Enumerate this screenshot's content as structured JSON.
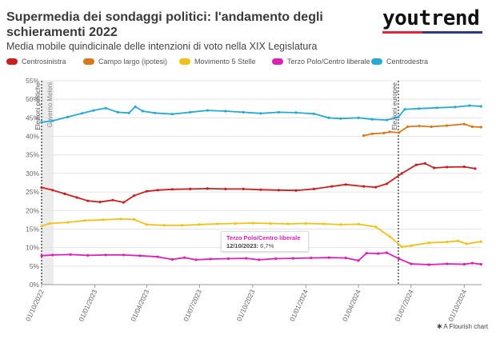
{
  "header": {
    "title": "Supermedia dei sondaggi politici: l'andamento degli schieramenti 2022",
    "subtitle": "Media mobile quindicinale delle intenzioni di voto nella XIX Legislatura",
    "brand": "youtrend"
  },
  "tooltip": {
    "series": "Terzo Polo/Centro liberale",
    "date": "12/10/2023:",
    "value": "6,7%"
  },
  "footer": {
    "credit": "A Flourish chart",
    "credit_icon": "flourish-icon"
  },
  "chart_data": {
    "type": "line",
    "title": "",
    "xlabel": "",
    "ylabel": "",
    "x_range": [
      "2022-10-01",
      "2024-10-31"
    ],
    "ylim": [
      0,
      55
    ],
    "y_ticks": [
      "0%",
      "5%",
      "10%",
      "15%",
      "20%",
      "25%",
      "30%",
      "35%",
      "40%",
      "45%",
      "50%",
      "55%"
    ],
    "x_ticks": [
      {
        "date": "2022-10-01",
        "label": "01/10/2022"
      },
      {
        "date": "2023-01-01",
        "label": "01/01/2023"
      },
      {
        "date": "2023-04-01",
        "label": "01/04/2023"
      },
      {
        "date": "2023-07-01",
        "label": "01/07/2023"
      },
      {
        "date": "2023-10-01",
        "label": "01/10/2023"
      },
      {
        "date": "2024-01-01",
        "label": "01/01/2024"
      },
      {
        "date": "2024-04-01",
        "label": "01/04/2024"
      },
      {
        "date": "2024-07-01",
        "label": "01/07/2024"
      },
      {
        "date": "2024-10-01",
        "label": "01/10/2024"
      }
    ],
    "grid": true,
    "legend_position": "top",
    "events": [
      {
        "date": "2022-10-01",
        "label": "Elezioni politiche",
        "style": "dotted"
      },
      {
        "date": "2022-10-22",
        "label": "Governo Meloni",
        "style": "shaded"
      },
      {
        "date": "2024-06-09",
        "label": "Elezioni europee",
        "style": "dotted"
      }
    ],
    "series": [
      {
        "name": "Centrosinistra",
        "color": "#c8201f",
        "points": [
          [
            "2022-10-01",
            26.2
          ],
          [
            "2022-10-20",
            25.5
          ],
          [
            "2022-11-10",
            24.5
          ],
          [
            "2022-12-01",
            23.5
          ],
          [
            "2022-12-20",
            22.6
          ],
          [
            "2023-01-10",
            22.3
          ],
          [
            "2023-02-01",
            22.8
          ],
          [
            "2023-02-20",
            22.2
          ],
          [
            "2023-03-10",
            24.0
          ],
          [
            "2023-04-01",
            25.2
          ],
          [
            "2023-04-20",
            25.5
          ],
          [
            "2023-05-15",
            25.7
          ],
          [
            "2023-06-15",
            25.8
          ],
          [
            "2023-07-15",
            25.9
          ],
          [
            "2023-08-15",
            25.8
          ],
          [
            "2023-09-15",
            25.8
          ],
          [
            "2023-10-15",
            25.6
          ],
          [
            "2023-11-15",
            25.5
          ],
          [
            "2023-12-15",
            25.4
          ],
          [
            "2024-01-15",
            25.8
          ],
          [
            "2024-02-15",
            26.5
          ],
          [
            "2024-03-10",
            27.0
          ],
          [
            "2024-04-10",
            26.5
          ],
          [
            "2024-05-01",
            26.3
          ],
          [
            "2024-05-20",
            27.2
          ],
          [
            "2024-06-15",
            30.0
          ],
          [
            "2024-07-10",
            32.3
          ],
          [
            "2024-07-25",
            32.7
          ],
          [
            "2024-08-10",
            31.5
          ],
          [
            "2024-09-01",
            31.7
          ],
          [
            "2024-10-01",
            31.8
          ],
          [
            "2024-10-20",
            31.3
          ]
        ]
      },
      {
        "name": "Campo largo (ipotesi)",
        "color": "#d9771b",
        "points": [
          [
            "2024-04-10",
            40.2
          ],
          [
            "2024-04-25",
            40.7
          ],
          [
            "2024-05-15",
            40.9
          ],
          [
            "2024-05-25",
            41.2
          ],
          [
            "2024-06-10",
            41.0
          ],
          [
            "2024-06-25",
            42.6
          ],
          [
            "2024-07-15",
            42.8
          ],
          [
            "2024-08-05",
            42.6
          ],
          [
            "2024-09-01",
            42.9
          ],
          [
            "2024-10-01",
            43.3
          ],
          [
            "2024-10-15",
            42.6
          ],
          [
            "2024-10-30",
            42.5
          ]
        ]
      },
      {
        "name": "Movimento 5 Stelle",
        "color": "#f0c219",
        "points": [
          [
            "2022-10-01",
            15.8
          ],
          [
            "2022-10-15",
            16.5
          ],
          [
            "2022-11-15",
            16.8
          ],
          [
            "2022-12-15",
            17.3
          ],
          [
            "2023-01-15",
            17.5
          ],
          [
            "2023-02-15",
            17.7
          ],
          [
            "2023-03-10",
            17.6
          ],
          [
            "2023-04-01",
            16.2
          ],
          [
            "2023-05-01",
            16.0
          ],
          [
            "2023-06-01",
            16.0
          ],
          [
            "2023-07-01",
            16.2
          ],
          [
            "2023-08-01",
            16.4
          ],
          [
            "2023-09-01",
            16.5
          ],
          [
            "2023-10-01",
            16.6
          ],
          [
            "2023-11-01",
            16.5
          ],
          [
            "2023-12-01",
            16.4
          ],
          [
            "2024-01-01",
            16.5
          ],
          [
            "2024-02-01",
            16.4
          ],
          [
            "2024-03-01",
            16.2
          ],
          [
            "2024-04-01",
            16.3
          ],
          [
            "2024-05-01",
            15.6
          ],
          [
            "2024-05-25",
            13.0
          ],
          [
            "2024-06-15",
            10.2
          ],
          [
            "2024-07-01",
            10.5
          ],
          [
            "2024-08-01",
            11.3
          ],
          [
            "2024-09-01",
            11.5
          ],
          [
            "2024-09-20",
            11.8
          ],
          [
            "2024-10-05",
            11.0
          ],
          [
            "2024-10-30",
            11.6
          ]
        ]
      },
      {
        "name": "Terzo Polo/Centro liberale",
        "color": "#dd1fb6",
        "points": [
          [
            "2022-10-01",
            7.8
          ],
          [
            "2022-10-20",
            8.0
          ],
          [
            "2022-11-20",
            8.1
          ],
          [
            "2022-12-20",
            7.9
          ],
          [
            "2023-01-20",
            8.0
          ],
          [
            "2023-02-20",
            8.0
          ],
          [
            "2023-03-20",
            7.8
          ],
          [
            "2023-04-20",
            7.5
          ],
          [
            "2023-05-15",
            6.8
          ],
          [
            "2023-06-05",
            7.3
          ],
          [
            "2023-06-25",
            6.7
          ],
          [
            "2023-07-20",
            6.9
          ],
          [
            "2023-08-20",
            7.0
          ],
          [
            "2023-09-20",
            7.1
          ],
          [
            "2023-10-12",
            6.7
          ],
          [
            "2023-11-10",
            7.0
          ],
          [
            "2023-12-10",
            7.1
          ],
          [
            "2024-01-10",
            7.2
          ],
          [
            "2024-02-10",
            7.3
          ],
          [
            "2024-03-10",
            7.2
          ],
          [
            "2024-04-01",
            6.5
          ],
          [
            "2024-04-15",
            8.5
          ],
          [
            "2024-05-05",
            8.4
          ],
          [
            "2024-05-20",
            8.6
          ],
          [
            "2024-06-10",
            7.0
          ],
          [
            "2024-07-01",
            5.6
          ],
          [
            "2024-08-01",
            5.4
          ],
          [
            "2024-09-01",
            5.6
          ],
          [
            "2024-10-01",
            5.5
          ],
          [
            "2024-10-15",
            5.8
          ],
          [
            "2024-10-30",
            5.5
          ]
        ]
      },
      {
        "name": "Centrodestra",
        "color": "#28a9d1",
        "points": [
          [
            "2022-10-01",
            43.8
          ],
          [
            "2022-10-20",
            44.2
          ],
          [
            "2022-11-15",
            45.2
          ],
          [
            "2022-12-10",
            46.2
          ],
          [
            "2022-12-30",
            47.0
          ],
          [
            "2023-01-20",
            47.6
          ],
          [
            "2023-02-10",
            46.5
          ],
          [
            "2023-03-01",
            46.3
          ],
          [
            "2023-03-12",
            48.0
          ],
          [
            "2023-03-25",
            46.8
          ],
          [
            "2023-04-15",
            46.3
          ],
          [
            "2023-05-15",
            46.0
          ],
          [
            "2023-06-15",
            46.5
          ],
          [
            "2023-07-15",
            47.0
          ],
          [
            "2023-08-15",
            46.8
          ],
          [
            "2023-09-15",
            46.5
          ],
          [
            "2023-10-15",
            46.2
          ],
          [
            "2023-11-15",
            46.5
          ],
          [
            "2023-12-15",
            46.4
          ],
          [
            "2024-01-15",
            46.1
          ],
          [
            "2024-02-10",
            45.0
          ],
          [
            "2024-03-01",
            44.8
          ],
          [
            "2024-04-01",
            45.0
          ],
          [
            "2024-04-25",
            44.6
          ],
          [
            "2024-05-20",
            44.4
          ],
          [
            "2024-06-09",
            45.2
          ],
          [
            "2024-06-20",
            47.3
          ],
          [
            "2024-07-15",
            47.5
          ],
          [
            "2024-08-15",
            47.7
          ],
          [
            "2024-09-15",
            47.9
          ],
          [
            "2024-10-10",
            48.3
          ],
          [
            "2024-10-30",
            48.1
          ]
        ]
      }
    ]
  }
}
